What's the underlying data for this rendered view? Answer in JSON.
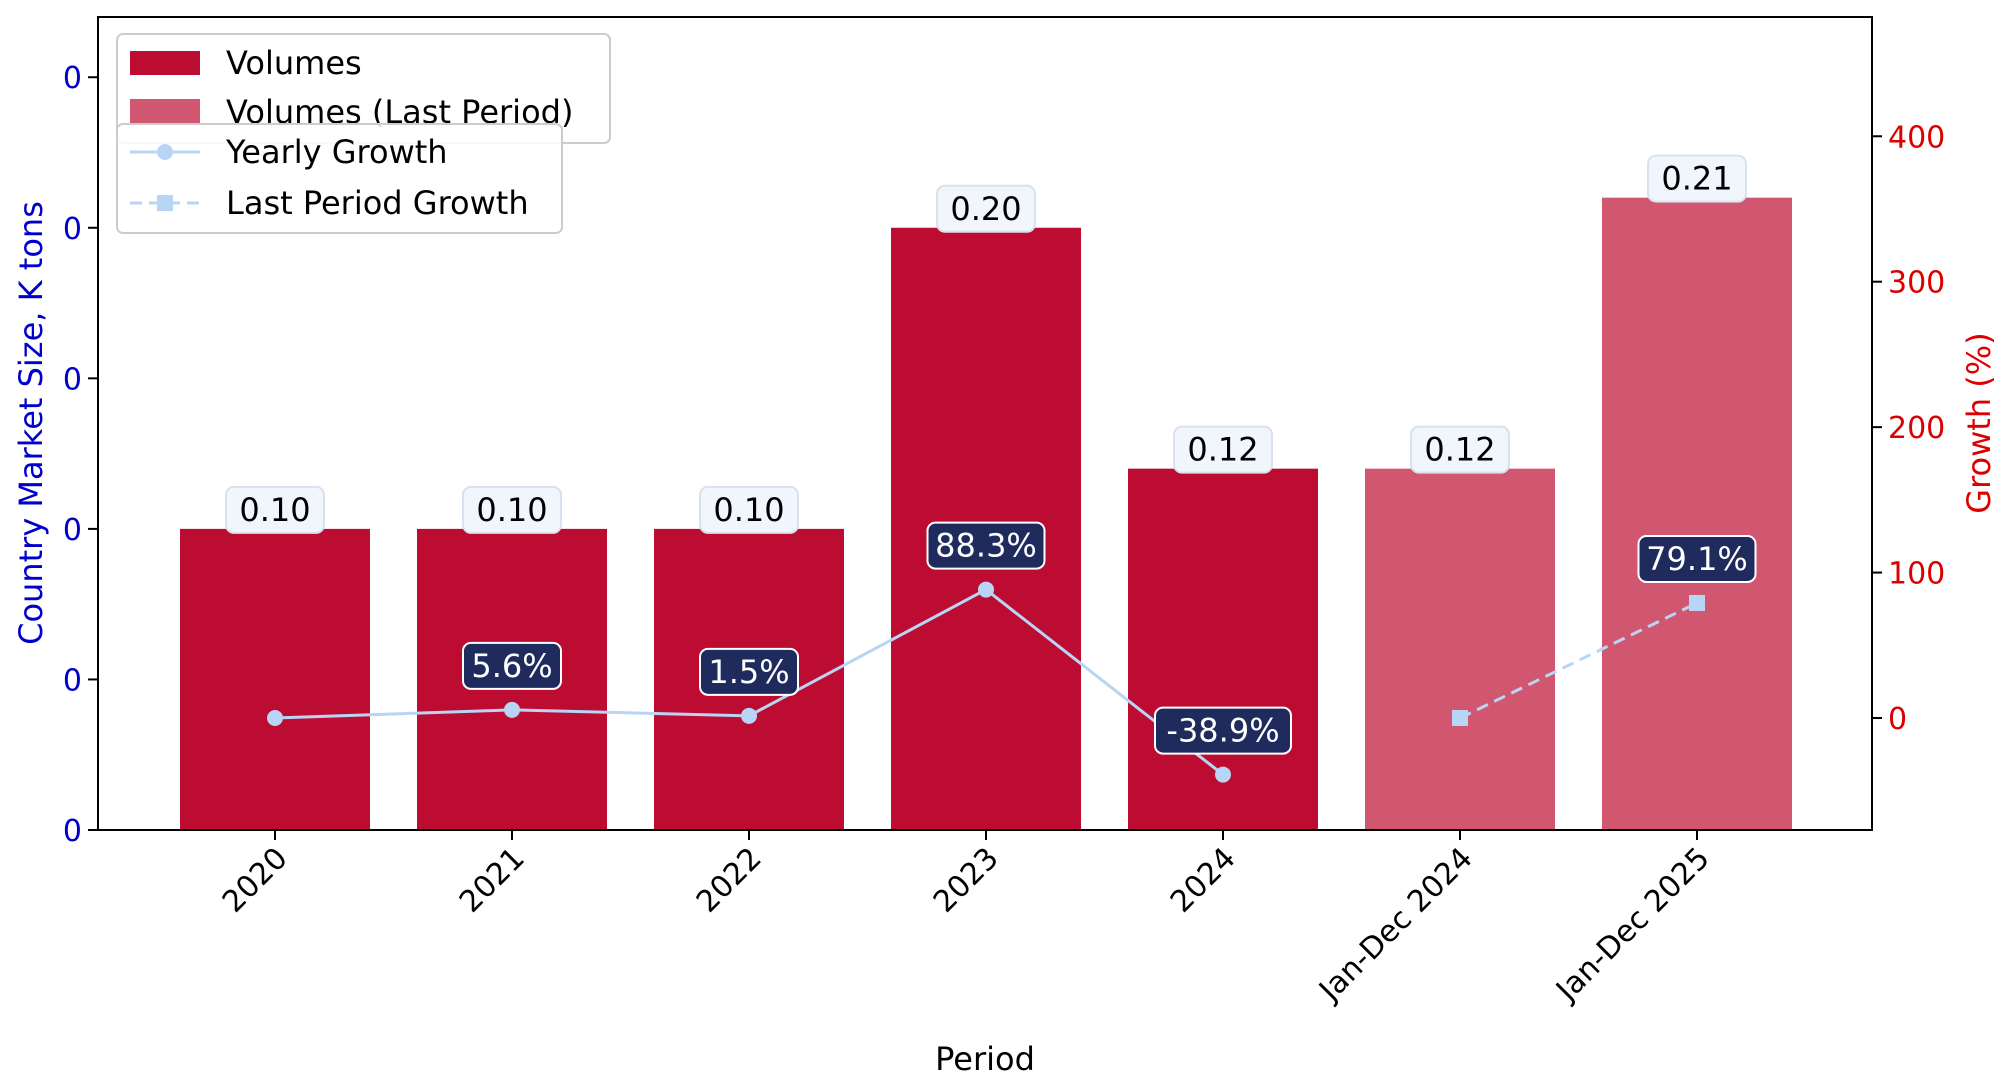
{
  "chart_data": {
    "type": "bar",
    "categories": [
      "2020",
      "2021",
      "2022",
      "2023",
      "2024",
      "Jan-Dec 2024",
      "Jan-Dec 2025"
    ],
    "series": [
      {
        "name": "Volumes",
        "kind": "bar",
        "color": "#bc0c31",
        "values": [
          0.1,
          0.1,
          0.1,
          0.2,
          0.12,
          null,
          null
        ],
        "labels": [
          "0.10",
          "0.10",
          "0.10",
          "0.20",
          "0.12",
          "",
          ""
        ]
      },
      {
        "name": "Volumes (Last Period)",
        "kind": "bar",
        "color": "#d1566f",
        "values": [
          null,
          null,
          null,
          null,
          null,
          0.12,
          0.21
        ],
        "labels": [
          "",
          "",
          "",
          "",
          "",
          "0.12",
          "0.21"
        ]
      },
      {
        "name": "Yearly Growth",
        "kind": "line",
        "axis": "right",
        "color": "#b9d5f5",
        "values": [
          0,
          5.6,
          1.5,
          88.3,
          -38.9,
          null,
          null
        ],
        "labels": [
          "",
          "5.6%",
          "1.5%",
          "88.3%",
          "-38.9%",
          "",
          ""
        ]
      },
      {
        "name": "Last Period Growth",
        "kind": "line",
        "axis": "right",
        "style": "dashed",
        "marker": "square",
        "color": "#b9d5f5",
        "values": [
          null,
          null,
          null,
          null,
          null,
          0,
          79.1
        ],
        "labels": [
          "",
          "",
          "",
          "",
          "",
          "",
          "79.1%"
        ]
      }
    ],
    "xlabel": "Period",
    "ylabel": "Country Market Size, K tons",
    "y2label": "Growth (%)",
    "ylim": [
      0,
      0.27
    ],
    "y2lim": [
      -77,
      482
    ],
    "yticks": [
      0,
      0.05,
      0.1,
      0.15,
      0.2,
      0.25,
      0.3
    ],
    "ytick_labels": [
      "0",
      "0",
      "0",
      "0",
      "0",
      "0",
      "0"
    ],
    "y2ticks": [
      0,
      100,
      200,
      300,
      400
    ],
    "y2tick_labels": [
      "0",
      "100",
      "200",
      "300",
      "400"
    ],
    "left_axis_color": "#0000cc",
    "right_axis_color": "#dd0000",
    "bar_label_bg": "#f0f6fc",
    "growth_label_bg": "#1e2b5c",
    "grid": false,
    "legend_placement": "top-left"
  }
}
